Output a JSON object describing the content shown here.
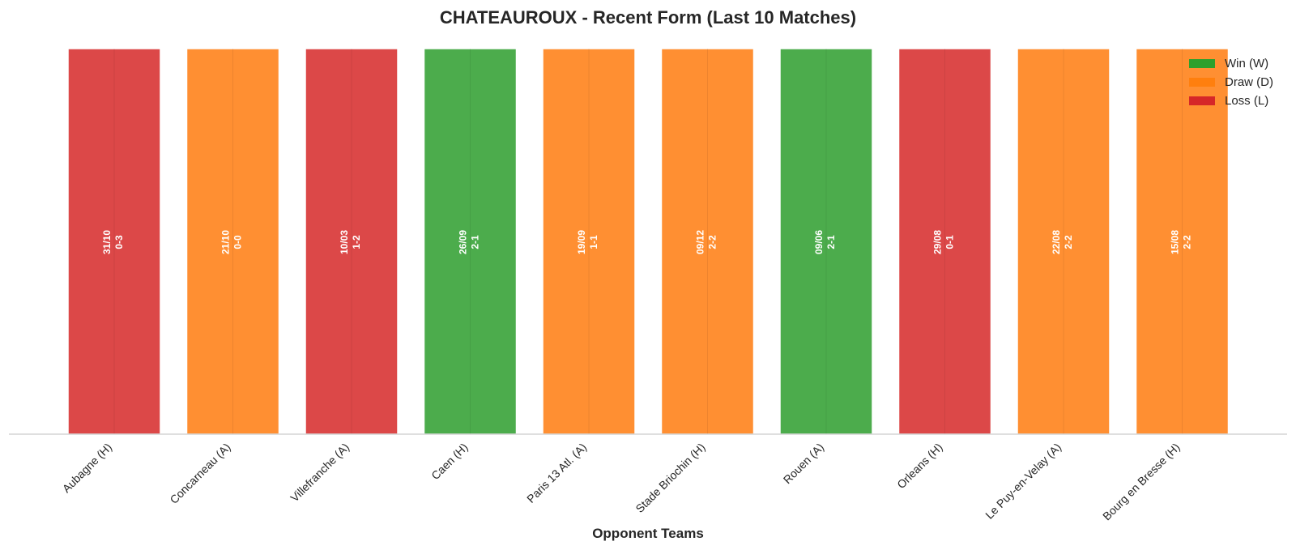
{
  "chart_data": {
    "type": "bar",
    "title": "CHATEAUROUX - Recent Form (Last 10 Matches)",
    "xlabel": "Opponent Teams",
    "ylabel": "",
    "ylim": [
      0,
      1
    ],
    "grid": false,
    "legend_position": "top-right",
    "legend": [
      {
        "key": "W",
        "label": "Win (W)",
        "color": "#2ca02c"
      },
      {
        "key": "D",
        "label": "Draw (D)",
        "color": "#ff7f0e"
      },
      {
        "key": "L",
        "label": "Loss (L)",
        "color": "#d62728"
      }
    ],
    "bar_colors": {
      "W": "#4cac4c",
      "D": "#ff8f32",
      "L": "#dc4848"
    },
    "matches": [
      {
        "opponent": "Aubagne (H)",
        "date": "31/10",
        "score": "0-3",
        "result": "L",
        "value": 1
      },
      {
        "opponent": "Concarneau (A)",
        "date": "21/10",
        "score": "0-0",
        "result": "D",
        "value": 1
      },
      {
        "opponent": "Villefranche (A)",
        "date": "10/03",
        "score": "1-2",
        "result": "L",
        "value": 1
      },
      {
        "opponent": "Caen (H)",
        "date": "26/09",
        "score": "2-1",
        "result": "W",
        "value": 1
      },
      {
        "opponent": "Paris 13 Atl. (A)",
        "date": "19/09",
        "score": "1-1",
        "result": "D",
        "value": 1
      },
      {
        "opponent": "Stade Briochin (H)",
        "date": "09/12",
        "score": "2-2",
        "result": "D",
        "value": 1
      },
      {
        "opponent": "Rouen (A)",
        "date": "09/06",
        "score": "2-1",
        "result": "W",
        "value": 1
      },
      {
        "opponent": "Orleans (H)",
        "date": "29/08",
        "score": "0-1",
        "result": "L",
        "value": 1
      },
      {
        "opponent": "Le Puy-en-Velay (A)",
        "date": "22/08",
        "score": "2-2",
        "result": "D",
        "value": 1
      },
      {
        "opponent": "Bourg en Bresse (H)",
        "date": "15/08",
        "score": "2-2",
        "result": "D",
        "value": 1
      }
    ]
  }
}
